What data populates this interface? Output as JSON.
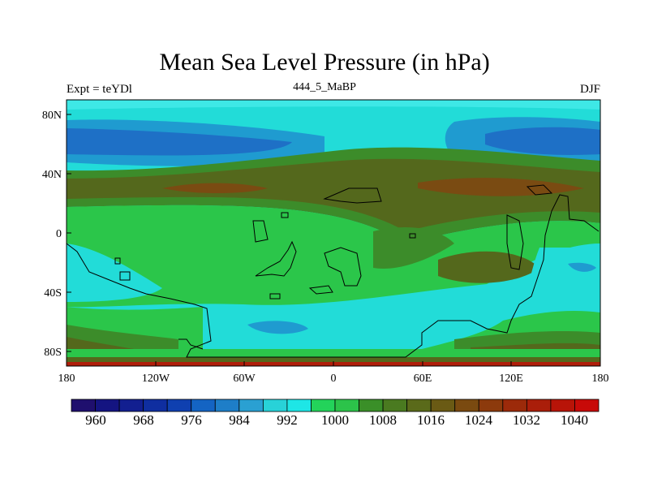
{
  "title": "Mean Sea Level Pressure (in hPa)",
  "subtitle_left": "Expt = teYDl",
  "subtitle_center": "444_5_MaBP",
  "subtitle_right": "DJF",
  "x_ticks": [
    "180",
    "120W",
    "60W",
    "0",
    "60E",
    "120E",
    "180"
  ],
  "y_ticks": [
    "80N",
    "40N",
    "0",
    "40S",
    "80S"
  ],
  "colorbar": {
    "labels": [
      "960",
      "968",
      "976",
      "984",
      "992",
      "1000",
      "1008",
      "1016",
      "1024",
      "1032",
      "1040"
    ],
    "colors": [
      "#1f0f6e",
      "#141481",
      "#121f90",
      "#0f2ea0",
      "#0f40b0",
      "#1464c3",
      "#1e7ec8",
      "#2aa0d2",
      "#28d2d8",
      "#1ee6e6",
      "#23d35a",
      "#2cc34a",
      "#3a8f28",
      "#4a7a20",
      "#5a6a1a",
      "#6a5a14",
      "#7a4a10",
      "#8c3a0c",
      "#9c2a0a",
      "#aa1e0a",
      "#b81408",
      "#c80a08"
    ]
  },
  "colors": {
    "ocean_light": "#22dcd8",
    "ocean_deep": "#1e70c6",
    "ocean_mid": "#1f9bd0",
    "green_light": "#2bc64a",
    "green_mid": "#3c8c2a",
    "olive": "#54681c",
    "brown": "#7a4b12",
    "cyan_pale": "#3ee8e6",
    "red": "#b01e0a"
  }
}
